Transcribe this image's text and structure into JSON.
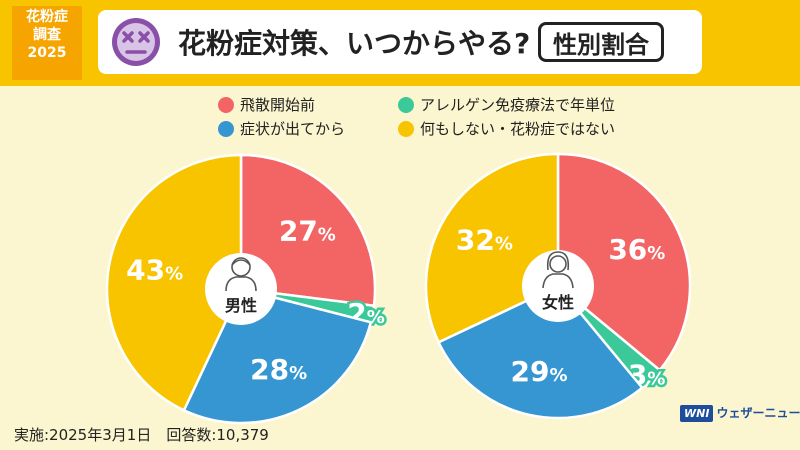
{
  "header": {
    "badge_line1": "花粉症",
    "badge_line2": "調査",
    "badge_line3": "2025",
    "title": "花粉症対策、いつからやる?",
    "tag": "性別割合"
  },
  "colors": {
    "red": "#f36565",
    "green": "#3cc99a",
    "blue": "#3596d2",
    "yellow": "#f8c400",
    "face_purple": "#8a4fa8"
  },
  "legend": [
    {
      "label": "飛散開始前",
      "color": "#f36565"
    },
    {
      "label": "アレルゲン免疫療法で年単位",
      "color": "#3cc99a"
    },
    {
      "label": "症状が出てから",
      "color": "#3596d2"
    },
    {
      "label": "何もしない・花粉症ではない",
      "color": "#f8c400"
    }
  ],
  "chart_data": [
    {
      "type": "pie",
      "title": "男性",
      "categories": [
        "飛散開始前",
        "アレルゲン免疫療法で年単位",
        "症状が出てから",
        "何もしない・花粉症ではない"
      ],
      "values": [
        27,
        2,
        28,
        43
      ],
      "labels": [
        "27",
        "2",
        "28",
        "43"
      ],
      "unit": "%",
      "icon": "male-person-icon"
    },
    {
      "type": "pie",
      "title": "女性",
      "categories": [
        "飛散開始前",
        "アレルゲン免疫療法で年単位",
        "症状が出てから",
        "何もしない・花粉症ではない"
      ],
      "values": [
        36,
        3,
        29,
        32
      ],
      "labels": [
        "36",
        "3",
        "29",
        "32"
      ],
      "unit": "%",
      "icon": "female-person-icon"
    }
  ],
  "footer": {
    "text": "実施:2025年3月1日　回答数:10,379"
  },
  "logo": {
    "mark": "WNI",
    "text": "ウェザーニュース"
  }
}
